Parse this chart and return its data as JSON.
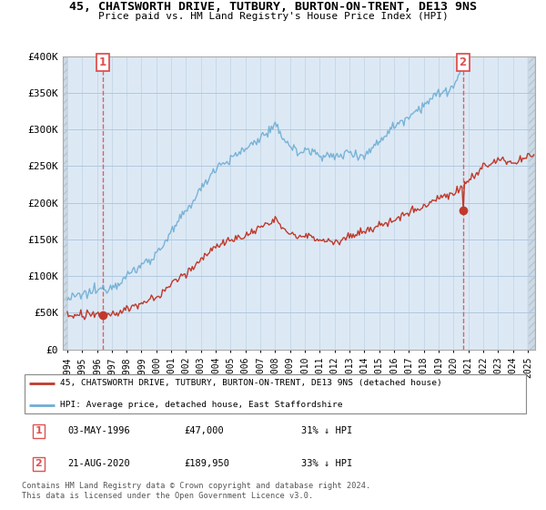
{
  "title_line1": "45, CHATSWORTH DRIVE, TUTBURY, BURTON-ON-TRENT, DE13 9NS",
  "title_line2": "Price paid vs. HM Land Registry's House Price Index (HPI)",
  "ylim": [
    0,
    400000
  ],
  "yticks": [
    0,
    50000,
    100000,
    150000,
    200000,
    250000,
    300000,
    350000,
    400000
  ],
  "ytick_labels": [
    "£0",
    "£50K",
    "£100K",
    "£150K",
    "£200K",
    "£250K",
    "£300K",
    "£350K",
    "£400K"
  ],
  "xlim_start": 1993.7,
  "xlim_end": 2025.5,
  "hpi_color": "#6eadd4",
  "price_color": "#c0392b",
  "vline_color": "#e05050",
  "point1_date_num": 1996.37,
  "point1_price": 47000,
  "point2_date_num": 2020.64,
  "point2_price": 189950,
  "legend_line1": "45, CHATSWORTH DRIVE, TUTBURY, BURTON-ON-TRENT, DE13 9NS (detached house)",
  "legend_line2": "HPI: Average price, detached house, East Staffordshire",
  "table_row1": [
    "1",
    "03-MAY-1996",
    "£47,000",
    "31% ↓ HPI"
  ],
  "table_row2": [
    "2",
    "21-AUG-2020",
    "£189,950",
    "33% ↓ HPI"
  ],
  "footnote": "Contains HM Land Registry data © Crown copyright and database right 2024.\nThis data is licensed under the Open Government Licence v3.0.",
  "chart_bg": "#dce9f5",
  "hatch_bg": "#dce9f5",
  "grid_color": "#b0c8e0",
  "vgrid_color": "#c8d8e8"
}
